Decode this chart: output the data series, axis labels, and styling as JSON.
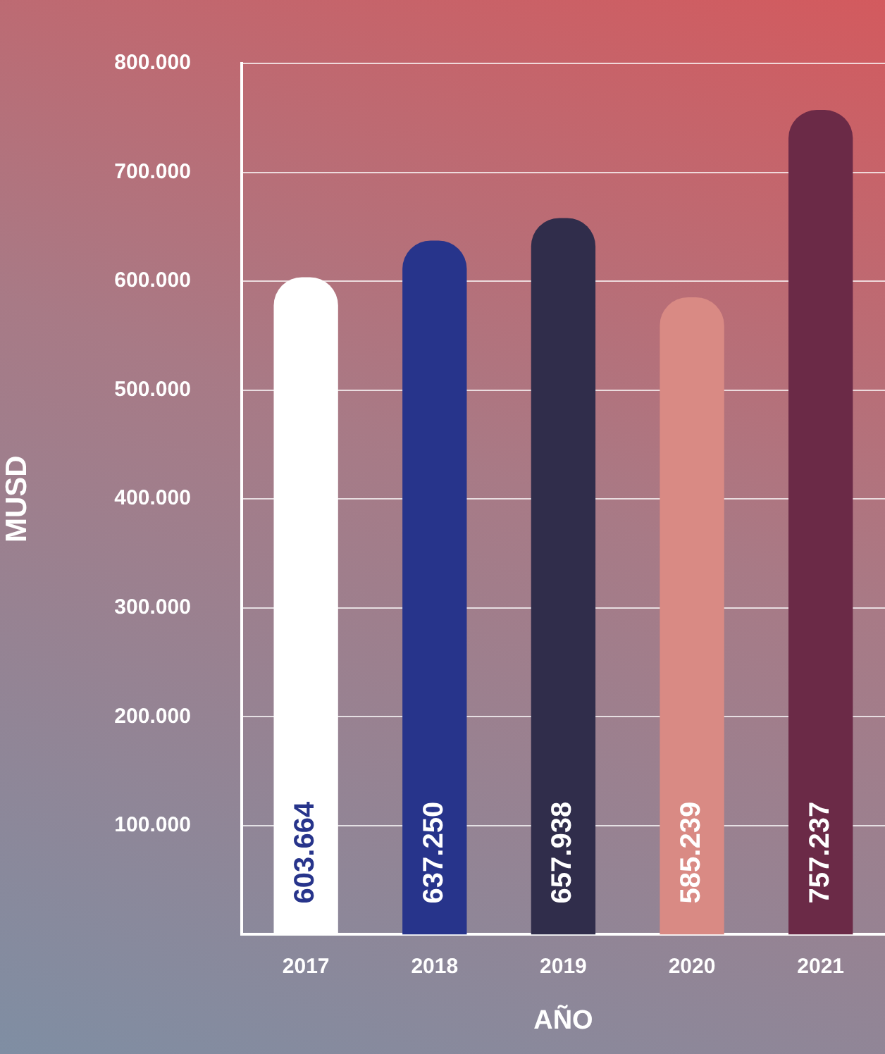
{
  "chart_data": {
    "type": "bar",
    "xlabel": "AÑO",
    "ylabel": "MUSD",
    "categories": [
      "2017",
      "2018",
      "2019",
      "2020",
      "2021"
    ],
    "values": [
      603664,
      637250,
      657938,
      585239,
      757237
    ],
    "colors": [
      "#ffffff",
      "#27348b",
      "#302d4b",
      "#d98a84",
      "#6b2a47"
    ],
    "value_labels": [
      "603.664",
      "637.250",
      "657.938",
      "585.239",
      "757.237"
    ],
    "ylim": [
      0,
      800000
    ],
    "yticks": [
      {
        "value": 100000,
        "label": "100.000"
      },
      {
        "value": 200000,
        "label": "200.000"
      },
      {
        "value": 300000,
        "label": "300.000"
      },
      {
        "value": 400000,
        "label": "400.000"
      },
      {
        "value": 500000,
        "label": "500.000"
      },
      {
        "value": 600000,
        "label": "600.000"
      },
      {
        "value": 700000,
        "label": "700.000"
      },
      {
        "value": 800000,
        "label": "800.000"
      }
    ],
    "grid": "y",
    "legend": false
  }
}
